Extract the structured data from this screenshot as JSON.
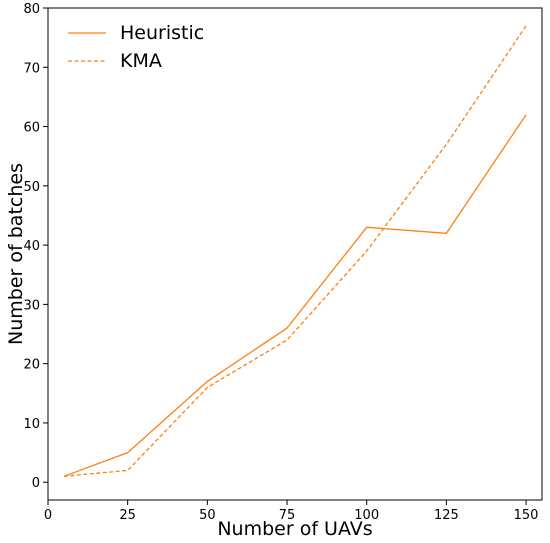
{
  "chart_data": {
    "type": "line",
    "title": "",
    "xlabel": "Number of UAVs",
    "ylabel": "Number of batches",
    "xlim": [
      0,
      155
    ],
    "ylim": [
      -3,
      80
    ],
    "x_ticks": [
      0,
      25,
      50,
      75,
      100,
      125,
      150
    ],
    "y_ticks": [
      0,
      10,
      20,
      30,
      40,
      50,
      60,
      70,
      80
    ],
    "x": [
      5,
      25,
      50,
      75,
      100,
      125,
      150
    ],
    "series": [
      {
        "name": "Heuristic",
        "values": [
          1,
          5,
          17,
          26,
          43,
          42,
          62
        ],
        "color": "#ff7f0e",
        "linestyle": "solid"
      },
      {
        "name": "KMA",
        "values": [
          1,
          2,
          16,
          24,
          39,
          57,
          77
        ],
        "color": "#ff7f0e",
        "linestyle": "dashed"
      }
    ],
    "grid": false,
    "legend_position": "top-left"
  }
}
